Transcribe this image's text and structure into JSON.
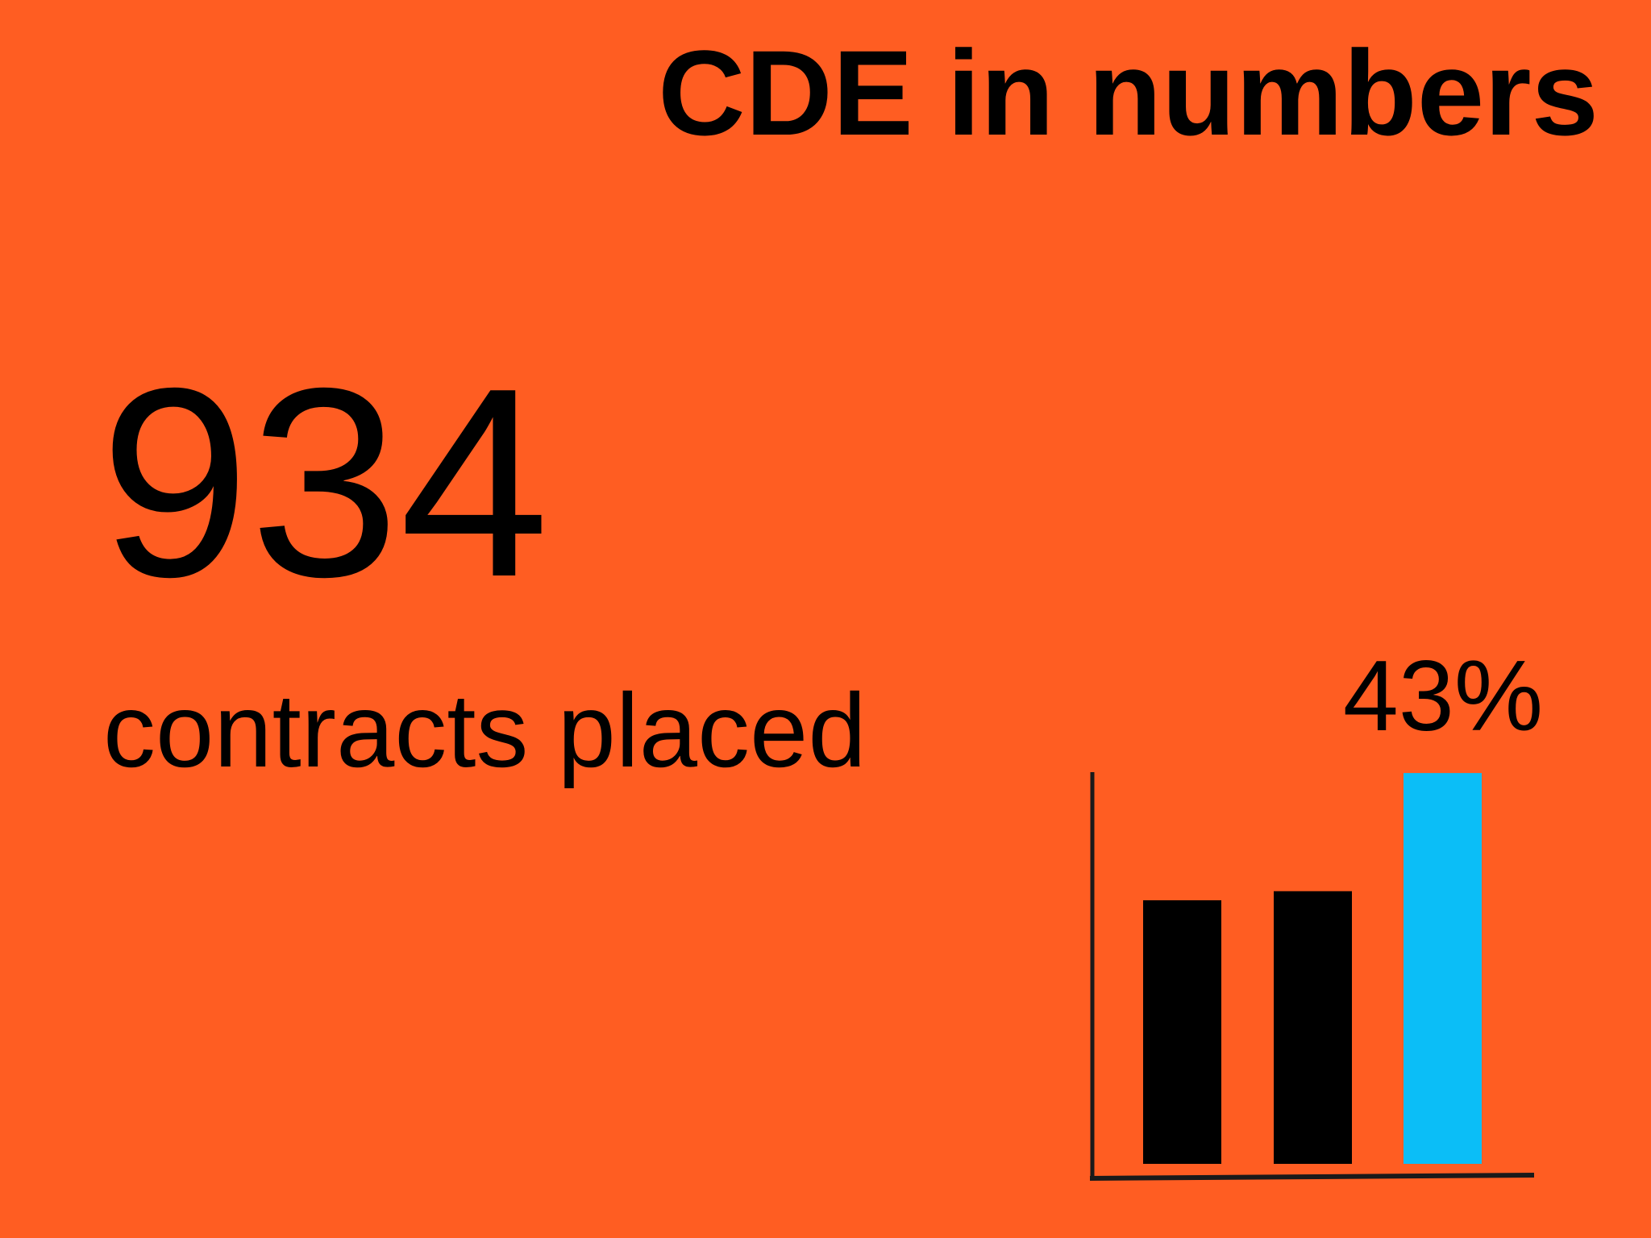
{
  "slide": {
    "title": "CDE in numbers",
    "background_color": "#FF5D22"
  },
  "stat": {
    "value": "934",
    "caption": "contracts placed"
  },
  "chart_data": {
    "type": "bar",
    "categories": [
      "",
      "",
      ""
    ],
    "values": [
      29,
      30,
      43
    ],
    "ylim": [
      0,
      47
    ],
    "grid": false,
    "bar_colors": [
      "#000000",
      "#000000",
      "#0BBEF7"
    ],
    "highlight_label": "43%"
  }
}
